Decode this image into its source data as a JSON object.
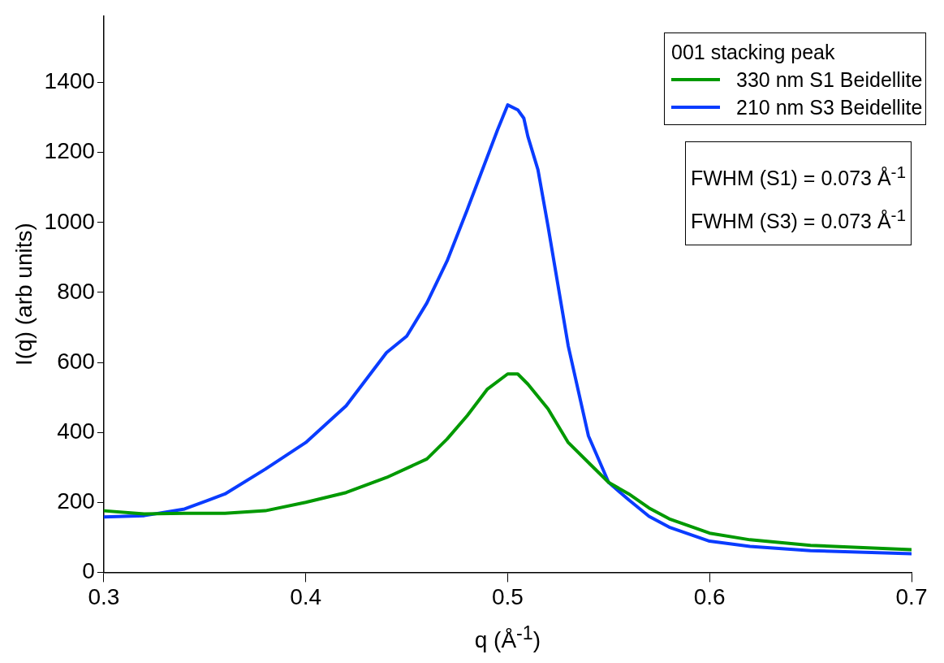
{
  "chart_data": {
    "type": "line",
    "xlabel": "q (Å$^{-1}$)",
    "ylabel": "I(q) (arb units)",
    "legend_title": "001 stacking peak",
    "legend": "top right",
    "grid": false,
    "marker": "none",
    "line_style": "solid",
    "xlim": [
      0.3,
      0.7
    ],
    "xticks": [
      0.3,
      0.4,
      0.5,
      0.6,
      0.7
    ],
    "ylim": [
      0,
      1590
    ],
    "yticks": [
      0,
      200,
      400,
      600,
      800,
      1000,
      1200,
      1400
    ],
    "annotations": [
      "FWHM (S1) = 0.073 Å$^{-1}$",
      "FWHM (S3) = 0.073 Å$^{-1}$"
    ],
    "series": [
      {
        "name": "330 nm S1 Beidellite",
        "color": "#009900",
        "x": [
          0.3,
          0.32,
          0.34,
          0.36,
          0.38,
          0.4,
          0.42,
          0.44,
          0.46,
          0.47,
          0.48,
          0.49,
          0.5,
          0.505,
          0.51,
          0.52,
          0.53,
          0.54,
          0.55,
          0.56,
          0.57,
          0.58,
          0.6,
          0.62,
          0.65,
          0.7
        ],
        "values": [
          176,
          167,
          169,
          169,
          176,
          200,
          228,
          271,
          324,
          381,
          448,
          524,
          567,
          567,
          538,
          467,
          371,
          314,
          257,
          224,
          184,
          153,
          112,
          93,
          77,
          65
        ]
      },
      {
        "name": "210 nm S3 Beidellite",
        "color": "#0a3cff",
        "x": [
          0.3,
          0.32,
          0.34,
          0.36,
          0.38,
          0.4,
          0.42,
          0.44,
          0.45,
          0.46,
          0.47,
          0.48,
          0.49,
          0.495,
          0.5,
          0.505,
          0.508,
          0.51,
          0.515,
          0.52,
          0.53,
          0.54,
          0.55,
          0.56,
          0.57,
          0.58,
          0.6,
          0.62,
          0.65,
          0.7
        ],
        "values": [
          158,
          162,
          181,
          224,
          295,
          371,
          476,
          628,
          675,
          770,
          890,
          1037,
          1189,
          1265,
          1336,
          1322,
          1298,
          1246,
          1151,
          989,
          647,
          390,
          257,
          207,
          160,
          129,
          89,
          74,
          62,
          53
        ]
      }
    ]
  }
}
